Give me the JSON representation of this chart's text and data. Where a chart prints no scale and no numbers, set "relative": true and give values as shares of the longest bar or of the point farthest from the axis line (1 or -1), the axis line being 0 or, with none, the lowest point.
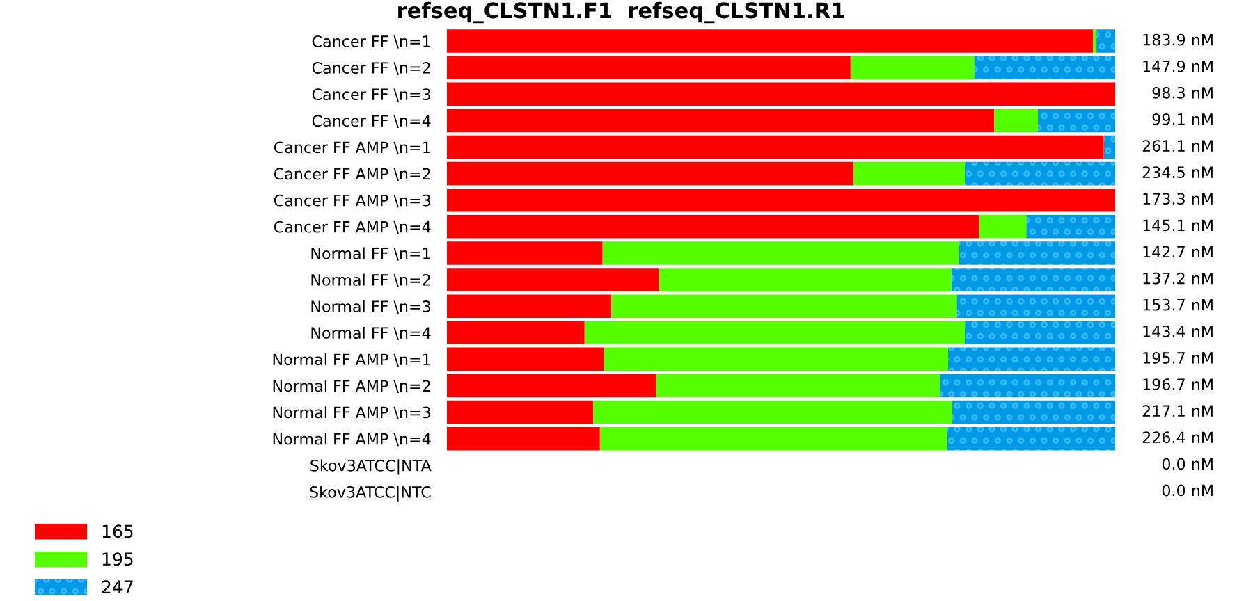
{
  "chart_data": {
    "type": "bar",
    "orientation": "horizontal",
    "stacked": true,
    "relative": true,
    "title": "refseq_CLSTN1.F1  refseq_CLSTN1.R1",
    "categories": [
      "Cancer FF \\n=1",
      "Cancer FF \\n=2",
      "Cancer FF \\n=3",
      "Cancer FF \\n=4",
      "Cancer FF AMP \\n=1",
      "Cancer FF AMP \\n=2",
      "Cancer FF AMP \\n=3",
      "Cancer FF AMP \\n=4",
      "Normal FF \\n=1",
      "Normal FF \\n=2",
      "Normal FF \\n=3",
      "Normal FF \\n=4",
      "Normal FF AMP \\n=1",
      "Normal FF AMP \\n=2",
      "Normal FF AMP \\n=3",
      "Normal FF AMP \\n=4",
      "Skov3ATCC|NTA",
      "Skov3ATCC|NTC"
    ],
    "series": [
      {
        "name": "165",
        "color": "#ff0000",
        "values": [
          0.967,
          0.604,
          1.0,
          0.819,
          0.983,
          0.608,
          1.0,
          0.796,
          0.233,
          0.317,
          0.246,
          0.206,
          0.235,
          0.313,
          0.219,
          0.229,
          0,
          0
        ]
      },
      {
        "name": "195",
        "color": "#55ff00",
        "values": [
          0.005,
          0.185,
          0,
          0.065,
          0,
          0.167,
          0,
          0.071,
          0.533,
          0.438,
          0.517,
          0.569,
          0.515,
          0.425,
          0.537,
          0.519,
          0,
          0
        ]
      },
      {
        "name": "247",
        "color": "#0099e6",
        "values": [
          0.028,
          0.211,
          0,
          0.116,
          0.017,
          0.225,
          0,
          0.133,
          0.234,
          0.245,
          0.237,
          0.225,
          0.25,
          0.262,
          0.244,
          0.252,
          0,
          0
        ]
      }
    ],
    "annotations": [
      "183.9 nM",
      "147.9 nM",
      "98.3 nM",
      "99.1 nM",
      "261.1 nM",
      "234.5 nM",
      "173.3 nM",
      "145.1 nM",
      "142.7 nM",
      "137.2 nM",
      "153.7 nM",
      "143.4 nM",
      "195.7 nM",
      "196.7 nM",
      "217.1 nM",
      "226.4 nM",
      "0.0 nM",
      "0.0 nM"
    ],
    "legend": "bottom left",
    "grid": false
  }
}
